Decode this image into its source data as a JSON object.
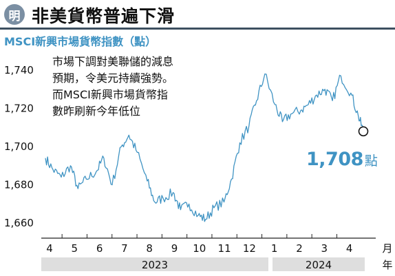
{
  "header": {
    "badge": "明",
    "title": "非美貨幣普遍下滑"
  },
  "annotation": {
    "lines": [
      "市場下調對美聯儲的減息",
      "預期，令美元持續強勢。",
      "而MSCI新興市場貨幣指",
      "數昨刷新今年低位"
    ]
  },
  "callout": {
    "value": "1,708",
    "unit": "點"
  },
  "colors": {
    "line": "#3f93c3",
    "accent": "#3f93c3",
    "year_band": "#dedede",
    "rule": "#3d4f60"
  },
  "chart_data": {
    "type": "line",
    "title": "MSCI新興市場貨幣指數（點）",
    "xlabel": "月",
    "ylabel": "",
    "ylim": [
      1655,
      1745
    ],
    "yticks": [
      1660,
      1680,
      1700,
      1720,
      1740
    ],
    "ytick_labels": [
      "1,660",
      "1,680",
      "1,700",
      "1,720",
      "1,740"
    ],
    "month_ticks": [
      "4",
      "5",
      "6",
      "7",
      "8",
      "9",
      "10",
      "11",
      "12",
      "1",
      "2",
      "3",
      "4"
    ],
    "years": [
      "2023",
      "2024"
    ],
    "grid": false,
    "end_marker_value": 1708,
    "series": [
      {
        "name": "",
        "x": [
          "2023-04-01",
          "2023-04-10",
          "2023-04-20",
          "2023-05-01",
          "2023-05-10",
          "2023-05-20",
          "2023-06-01",
          "2023-06-10",
          "2023-06-20",
          "2023-07-01",
          "2023-07-10",
          "2023-07-20",
          "2023-08-01",
          "2023-08-10",
          "2023-08-20",
          "2023-09-01",
          "2023-09-10",
          "2023-09-20",
          "2023-10-01",
          "2023-10-10",
          "2023-10-20",
          "2023-11-01",
          "2023-11-10",
          "2023-11-20",
          "2023-12-01",
          "2023-12-10",
          "2023-12-20",
          "2024-01-01",
          "2024-01-10",
          "2024-01-20",
          "2024-02-01",
          "2024-02-10",
          "2024-02-20",
          "2024-03-01",
          "2024-03-10",
          "2024-03-20",
          "2024-04-01",
          "2024-04-10",
          "2024-04-16"
        ],
        "values": [
          1694,
          1688,
          1684,
          1690,
          1678,
          1683,
          1687,
          1694,
          1680,
          1700,
          1706,
          1697,
          1682,
          1671,
          1673,
          1676,
          1667,
          1670,
          1664,
          1662,
          1668,
          1671,
          1683,
          1702,
          1711,
          1724,
          1738,
          1722,
          1713,
          1717,
          1719,
          1722,
          1727,
          1730,
          1724,
          1737,
          1728,
          1716,
          1708
        ]
      }
    ]
  }
}
